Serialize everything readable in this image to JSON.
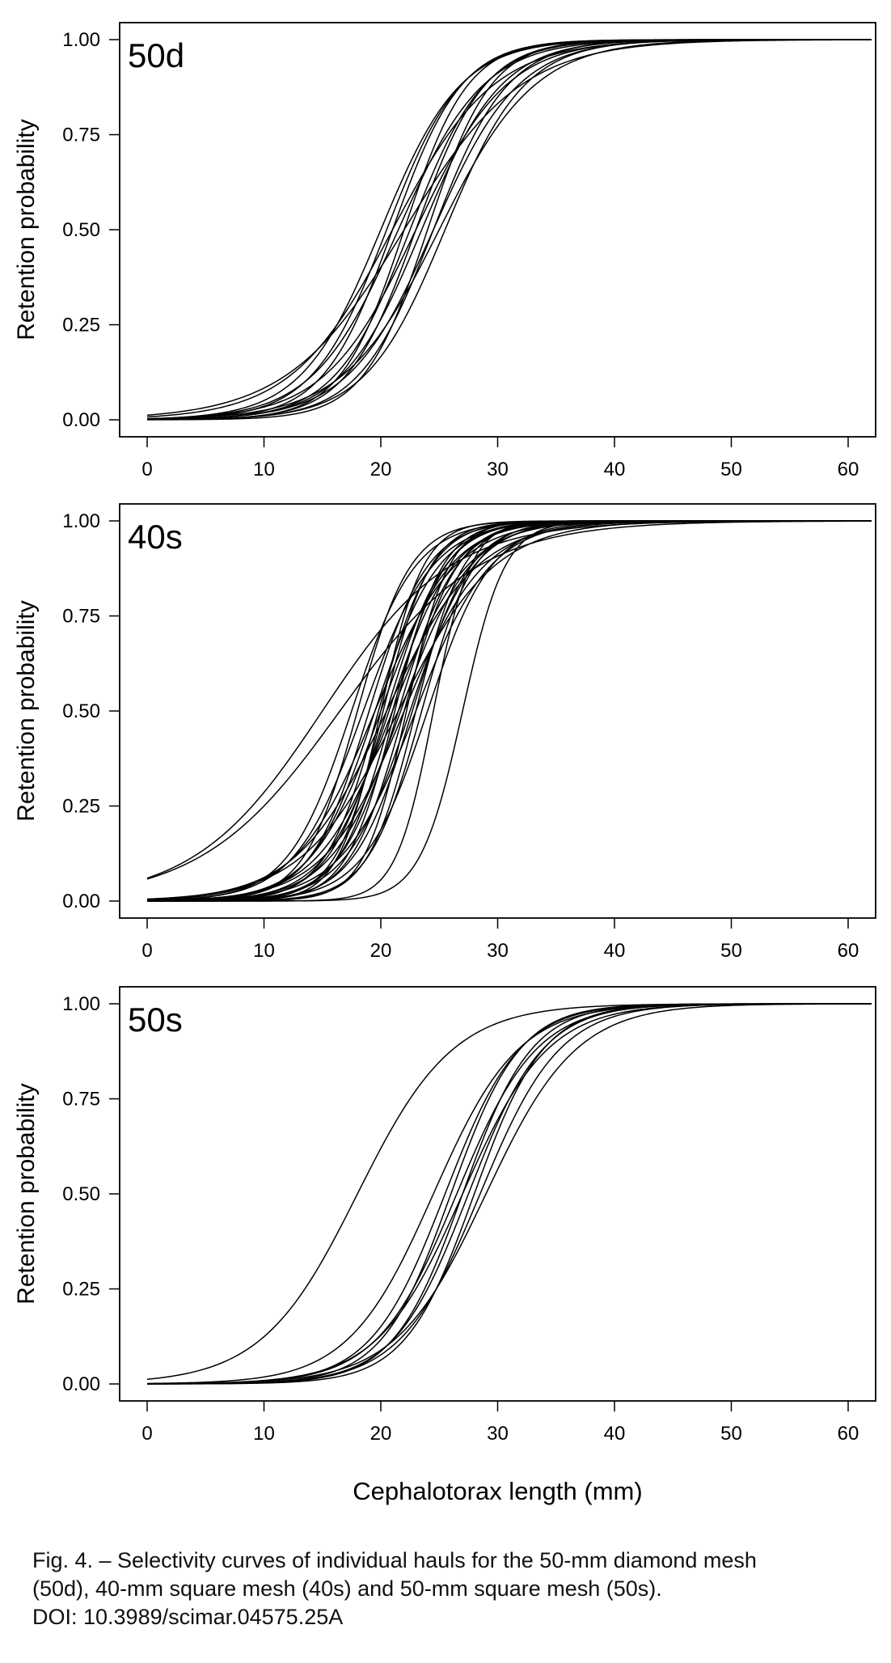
{
  "chart_data": [
    {
      "type": "line",
      "panel_label": "50d",
      "ylabel": "Retention probability",
      "xlabel": "",
      "xlim": [
        -2,
        62
      ],
      "ylim": [
        0,
        1
      ],
      "x_ticks": [
        "0",
        "10",
        "20",
        "30",
        "40",
        "50",
        "60"
      ],
      "y_ticks": [
        "0.00",
        "0.25",
        "0.50",
        "0.75",
        "1.00"
      ],
      "grid": false,
      "legend": "none",
      "curve_model": "logistic",
      "series": [
        {
          "l50": 20.0,
          "sr": 7.5
        },
        {
          "l50": 20.5,
          "sr": 7.0
        },
        {
          "l50": 21.0,
          "sr": 6.5
        },
        {
          "l50": 21.5,
          "sr": 8.0
        },
        {
          "l50": 21.0,
          "sr": 9.5
        },
        {
          "l50": 22.0,
          "sr": 6.0
        },
        {
          "l50": 22.5,
          "sr": 7.0
        },
        {
          "l50": 23.0,
          "sr": 6.5
        },
        {
          "l50": 23.0,
          "sr": 8.5
        },
        {
          "l50": 23.5,
          "sr": 7.5
        },
        {
          "l50": 24.0,
          "sr": 6.0
        },
        {
          "l50": 24.5,
          "sr": 7.0
        },
        {
          "l50": 24.5,
          "sr": 8.0
        },
        {
          "l50": 25.0,
          "sr": 9.0
        },
        {
          "l50": 22.0,
          "sr": 11.0
        },
        {
          "l50": 25.5,
          "sr": 7.5
        }
      ]
    },
    {
      "type": "line",
      "panel_label": "40s",
      "ylabel": "Retention probability",
      "xlabel": "",
      "xlim": [
        -2,
        62
      ],
      "ylim": [
        0,
        1
      ],
      "x_ticks": [
        "0",
        "10",
        "20",
        "30",
        "40",
        "50",
        "60"
      ],
      "y_ticks": [
        "0.00",
        "0.25",
        "0.50",
        "0.75",
        "1.00"
      ],
      "grid": false,
      "legend": "none",
      "curve_model": "logistic",
      "series": [
        {
          "l50": 15.0,
          "sr": 12.0
        },
        {
          "l50": 16.5,
          "sr": 13.0
        },
        {
          "l50": 17.5,
          "sr": 6.0
        },
        {
          "l50": 18.0,
          "sr": 5.0
        },
        {
          "l50": 18.5,
          "sr": 6.5
        },
        {
          "l50": 19.0,
          "sr": 5.5
        },
        {
          "l50": 19.5,
          "sr": 6.0
        },
        {
          "l50": 19.8,
          "sr": 5.0
        },
        {
          "l50": 20.0,
          "sr": 6.5
        },
        {
          "l50": 20.2,
          "sr": 4.5
        },
        {
          "l50": 20.5,
          "sr": 5.5
        },
        {
          "l50": 20.7,
          "sr": 6.0
        },
        {
          "l50": 21.0,
          "sr": 5.0
        },
        {
          "l50": 21.2,
          "sr": 4.5
        },
        {
          "l50": 21.5,
          "sr": 5.5
        },
        {
          "l50": 21.7,
          "sr": 6.5
        },
        {
          "l50": 22.0,
          "sr": 5.0
        },
        {
          "l50": 22.2,
          "sr": 4.0
        },
        {
          "l50": 22.5,
          "sr": 6.0
        },
        {
          "l50": 22.7,
          "sr": 5.5
        },
        {
          "l50": 23.0,
          "sr": 7.0
        },
        {
          "l50": 23.5,
          "sr": 5.0
        },
        {
          "l50": 24.0,
          "sr": 6.0
        },
        {
          "l50": 20.5,
          "sr": 8.5
        },
        {
          "l50": 21.5,
          "sr": 9.0
        },
        {
          "l50": 19.5,
          "sr": 7.5
        },
        {
          "l50": 22.0,
          "sr": 7.5
        },
        {
          "l50": 20.0,
          "sr": 4.0
        },
        {
          "l50": 21.0,
          "sr": 7.0
        },
        {
          "l50": 23.0,
          "sr": 4.5
        },
        {
          "l50": 24.5,
          "sr": 3.5
        },
        {
          "l50": 27.0,
          "sr": 4.0
        }
      ]
    },
    {
      "type": "line",
      "panel_label": "50s",
      "ylabel": "Retention probability",
      "xlabel": "Cephalotorax length (mm)",
      "xlim": [
        -2,
        62
      ],
      "ylim": [
        0,
        1
      ],
      "x_ticks": [
        "0",
        "10",
        "20",
        "30",
        "40",
        "50",
        "60"
      ],
      "y_ticks": [
        "0.00",
        "0.25",
        "0.50",
        "0.75",
        "1.00"
      ],
      "grid": false,
      "legend": "none",
      "curve_model": "logistic",
      "series": [
        {
          "l50": 18.0,
          "sr": 9.0
        },
        {
          "l50": 24.5,
          "sr": 8.0
        },
        {
          "l50": 25.5,
          "sr": 7.0
        },
        {
          "l50": 26.0,
          "sr": 6.5
        },
        {
          "l50": 26.5,
          "sr": 7.5
        },
        {
          "l50": 27.0,
          "sr": 6.5
        },
        {
          "l50": 27.0,
          "sr": 8.0
        },
        {
          "l50": 27.5,
          "sr": 7.0
        },
        {
          "l50": 28.0,
          "sr": 6.5
        },
        {
          "l50": 28.5,
          "sr": 7.5
        },
        {
          "l50": 29.0,
          "sr": 8.5
        }
      ]
    }
  ],
  "caption": {
    "lines": [
      "Fig. 4. – Selectivity curves of individual hauls for the 50-mm diamond mesh",
      "(50d), 40-mm square mesh (40s) and 50-mm square mesh (50s).",
      "DOI: 10.3989/scimar.04575.25A"
    ]
  }
}
